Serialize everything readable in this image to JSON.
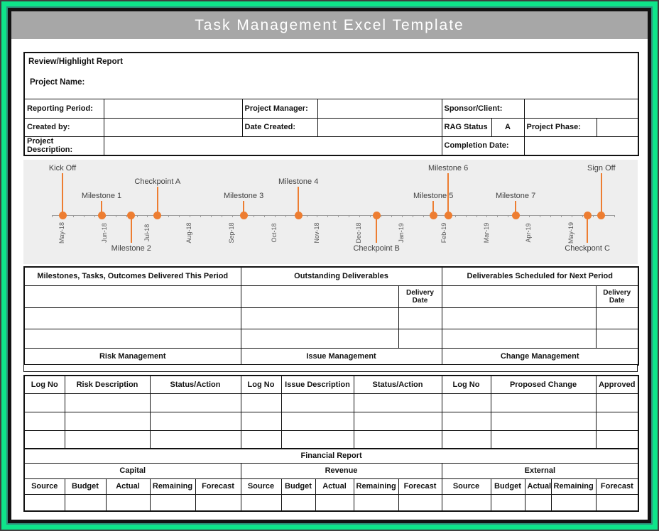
{
  "header": {
    "title": "Task Management Excel Template"
  },
  "report": {
    "section_title": "Review/Highlight Report",
    "fields": {
      "project_name_label": "Project Name:",
      "reporting_period_label": "Reporting Period:",
      "project_manager_label": "Project Manager:",
      "sponsor_client_label": "Sponsor/Client:",
      "created_by_label": "Created by:",
      "date_created_label": "Date Created:",
      "rag_status_label": "RAG Status",
      "rag_status_value": "A",
      "project_phase_label": "Project Phase:",
      "project_description_label": "Project Description:",
      "completion_date_label": "Completion Date:"
    }
  },
  "timeline": {
    "accent_color": "#ED7D31",
    "background_color": "#EEEEEE",
    "months": [
      "May-18",
      "Jun-18",
      "Jul-18",
      "Aug-18",
      "Sep-18",
      "Oct-18",
      "Nov-18",
      "Dec-18",
      "Jan-19",
      "Feb-19",
      "Mar-19",
      "Apr-19",
      "May-19"
    ],
    "milestones": [
      {
        "label": "Kick Off",
        "m": 0.0,
        "tier": "high"
      },
      {
        "label": "Milestone 1",
        "m": 0.92,
        "tier": "low"
      },
      {
        "label": "Milestone 2",
        "m": 1.62,
        "tier": "below"
      },
      {
        "label": "Checkpoint A",
        "m": 2.24,
        "tier": "mid"
      },
      {
        "label": "Milestone 3",
        "m": 4.27,
        "tier": "low"
      },
      {
        "label": "Milestone 4",
        "m": 5.56,
        "tier": "mid"
      },
      {
        "label": "Checkpoint B",
        "m": 7.4,
        "tier": "below"
      },
      {
        "label": "Milestone 5",
        "m": 8.74,
        "tier": "low"
      },
      {
        "label": "Milestone 6",
        "m": 9.09,
        "tier": "high"
      },
      {
        "label": "Milestone 7",
        "m": 10.68,
        "tier": "low"
      },
      {
        "label": "Checkpont C",
        "m": 12.37,
        "tier": "below"
      },
      {
        "label": "Sign Off",
        "m": 12.7,
        "tier": "high"
      }
    ]
  },
  "deliverables": {
    "sections": [
      "Milestones, Tasks, Outcomes Delivered This Period",
      "Outstanding Deliverables",
      "Deliverables Scheduled for Next Period"
    ],
    "delivery_date_label": "Delivery Date",
    "management_sections": [
      "Risk Management",
      "Issue Management",
      "Change Management"
    ]
  },
  "log_table": {
    "headers": [
      "Log No",
      "Risk Description",
      "Status/Action",
      "Log No",
      "Issue Description",
      "Status/Action",
      "Log No",
      "Proposed Change",
      "Approved"
    ]
  },
  "financial": {
    "title": "Financial Report",
    "sections": [
      "Capital",
      "Revenue",
      "External"
    ],
    "columns": [
      "Source",
      "Budget",
      "Actual",
      "Remaining",
      "Forecast"
    ]
  },
  "colors": {
    "frame_green": "#0EE58A",
    "frame_teal": "#2F8F7C",
    "frame_dark": "#3F3F3F",
    "inner_border": "#121212",
    "banner_gray": "#A7A7A7",
    "accent_orange": "#ED7D31",
    "timeline_bg": "#EEEEEE",
    "month_text": "#595959"
  }
}
